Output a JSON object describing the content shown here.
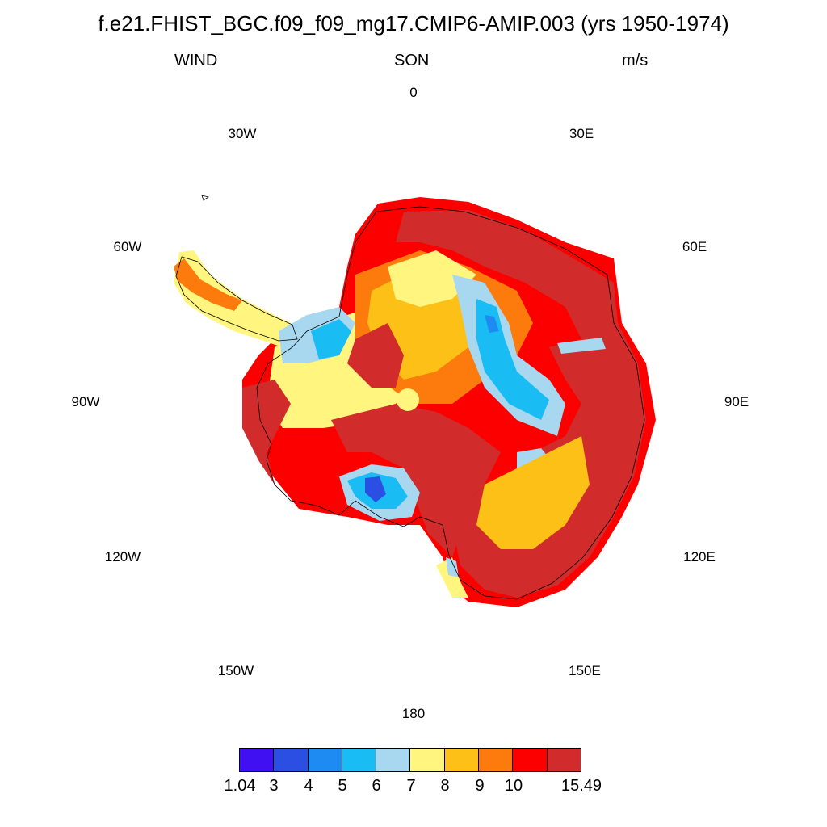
{
  "title": "f.e21.FHIST_BGC.f09_f09_mg17.CMIP6-AMIP.003 (yrs 1950-1974)",
  "left_label": "WIND",
  "center_label": "SON",
  "right_label": "m/s",
  "longitude_labels": [
    "0",
    "30E",
    "60E",
    "90E",
    "120E",
    "150E",
    "180",
    "150W",
    "120W",
    "90W",
    "60W",
    "30W"
  ],
  "colorbar": {
    "colors": [
      "#4110f2",
      "#2b4ee3",
      "#1e8bf3",
      "#19bdf3",
      "#a8d7f0",
      "#fff57f",
      "#fcc017",
      "#fc7b0c",
      "#fc0000",
      "#d22b2b"
    ],
    "labels": [
      "1.04",
      "3",
      "4",
      "5",
      "6",
      "7",
      "8",
      "9",
      "10",
      "15.49"
    ]
  }
}
